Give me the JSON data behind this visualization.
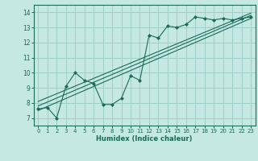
{
  "background_color": "#c5e8e3",
  "grid_color": "#9ecfca",
  "line_color": "#1a6b5a",
  "xlabel": "Humidex (Indice chaleur)",
  "xlim": [
    -0.5,
    23.5
  ],
  "ylim": [
    6.5,
    14.5
  ],
  "yticks": [
    7,
    8,
    9,
    10,
    11,
    12,
    13,
    14
  ],
  "xticks": [
    0,
    1,
    2,
    3,
    4,
    5,
    6,
    7,
    8,
    9,
    10,
    11,
    12,
    13,
    14,
    15,
    16,
    17,
    18,
    19,
    20,
    21,
    22,
    23
  ],
  "series1_x": [
    0,
    1,
    2,
    3,
    4,
    5,
    6,
    7,
    8,
    9,
    10,
    11,
    12,
    13,
    14,
    15,
    16,
    17,
    18,
    19,
    20,
    21,
    22,
    23
  ],
  "series1_y": [
    7.6,
    7.7,
    7.0,
    9.1,
    10.0,
    9.5,
    9.3,
    7.9,
    7.9,
    8.3,
    9.8,
    9.5,
    12.5,
    12.3,
    13.1,
    13.0,
    13.2,
    13.7,
    13.6,
    13.5,
    13.6,
    13.5,
    13.6,
    13.7
  ],
  "trend1_x": [
    0,
    23
  ],
  "trend1_y": [
    7.5,
    13.6
  ],
  "trend2_x": [
    0,
    23
  ],
  "trend2_y": [
    7.8,
    13.8
  ],
  "trend3_x": [
    0,
    23
  ],
  "trend3_y": [
    8.1,
    13.95
  ]
}
